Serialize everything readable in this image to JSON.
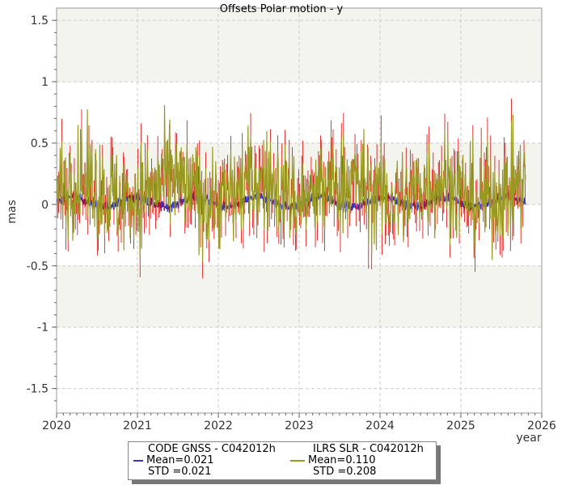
{
  "chart_data": {
    "type": "line",
    "title": "Offsets Polar motion - y",
    "xlabel": "year",
    "ylabel": "mas",
    "xlim": [
      2020,
      2026
    ],
    "ylim": [
      -1.7,
      1.6
    ],
    "x_ticks": [
      "2020",
      "2021",
      "2022",
      "2023",
      "2024",
      "2025",
      "2026"
    ],
    "y_ticks": [
      "1.5",
      "1",
      "0.5",
      "0",
      "-0.5",
      "-1",
      "-1.5"
    ],
    "grid": true,
    "legend_position": "bottom",
    "series": [
      {
        "name": "CODE GNSS - C042012h",
        "color": "#3333cc",
        "mean_label": "Mean=0.021",
        "std_label": "STD =0.021",
        "mean": 0.021,
        "std": 0.021,
        "x_range": [
          2020.0,
          2025.8
        ]
      },
      {
        "name": "ILRS SLR - C042012h",
        "color": "#999922",
        "error_color": "#dd0000",
        "mean_label": "Mean=0.110",
        "std_label": "STD =0.208",
        "mean": 0.11,
        "std": 0.208,
        "x_range": [
          2020.0,
          2025.8
        ]
      }
    ]
  }
}
